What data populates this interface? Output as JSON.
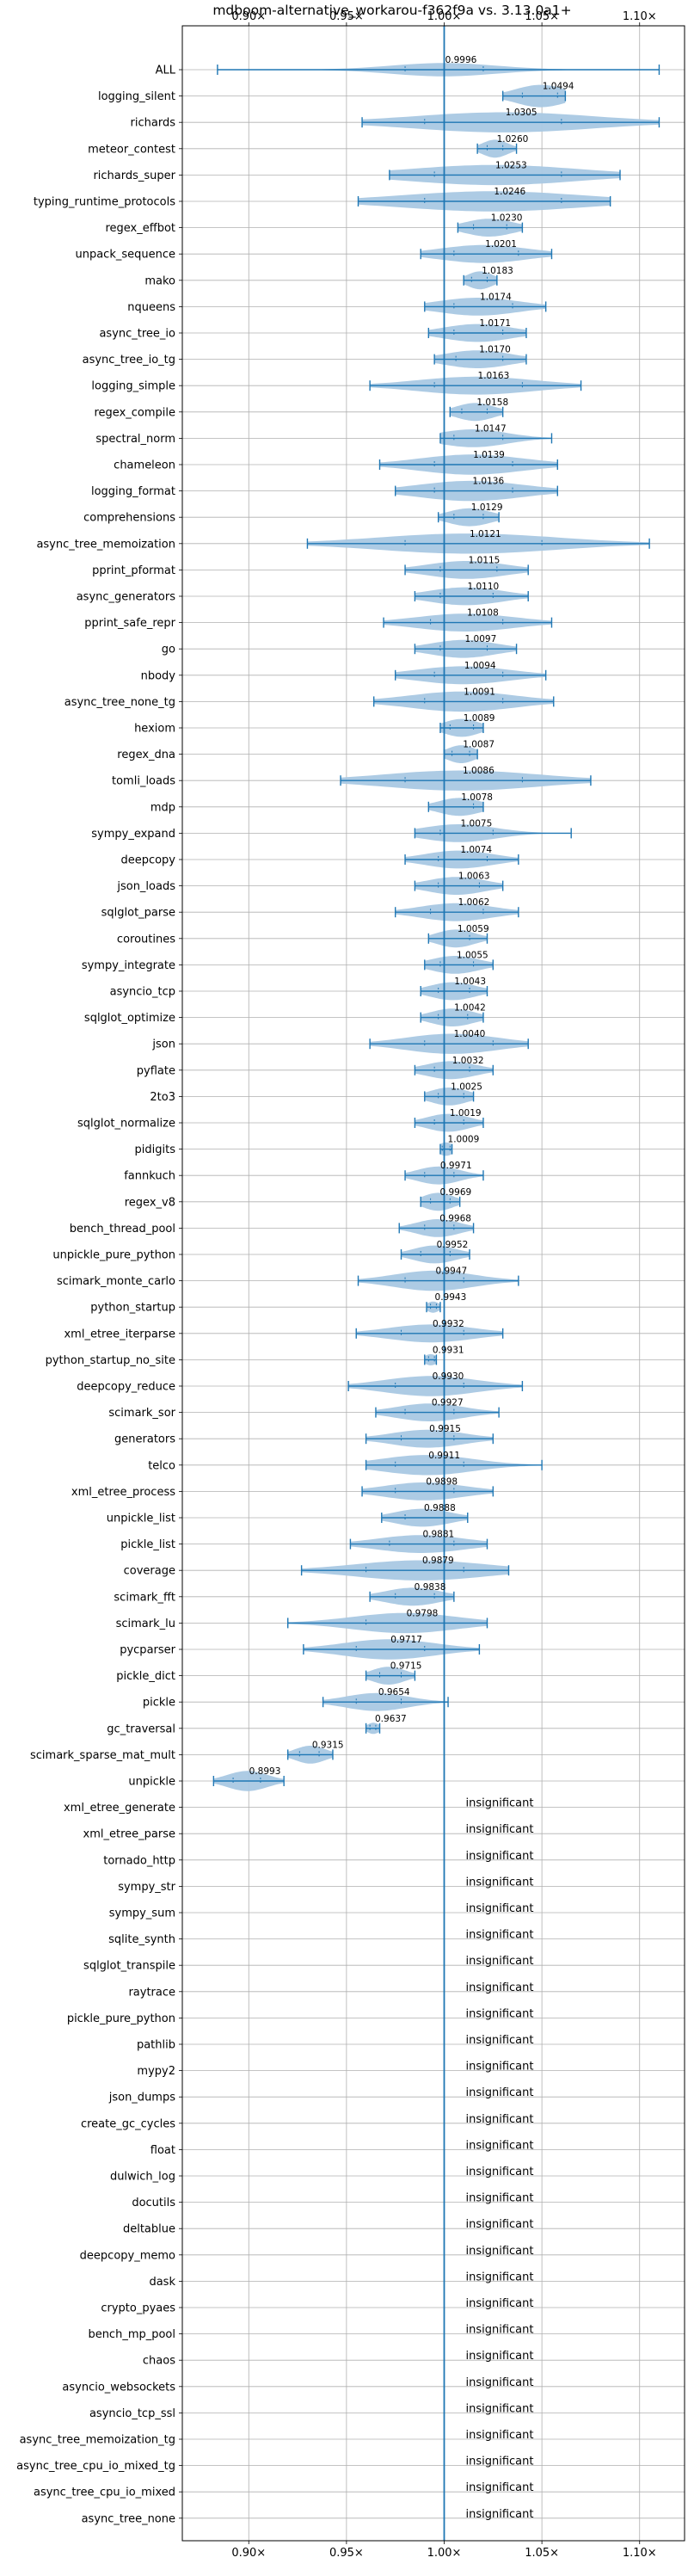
{
  "chart_data": {
    "type": "violin",
    "title": "mdboom-alternative_workarou-f362f9a vs. 3.13.0a1+",
    "x_tick_labels": [
      "0.90×",
      "0.95×",
      "1.00×",
      "1.05×",
      "1.10×"
    ],
    "x_ticks": [
      0.9,
      0.95,
      1.0,
      1.05,
      1.1
    ],
    "xlim": [
      0.866,
      1.123
    ],
    "reference_line": 1.0,
    "grid": true,
    "insignificant_label": "insignificant",
    "benchmarks": [
      {
        "name": "ALL",
        "median": 0.9996,
        "label": "0.9996",
        "min": 0.884,
        "max": 1.11,
        "q1": 0.98,
        "q3": 1.02,
        "width": 0.6
      },
      {
        "name": "logging_silent",
        "median": 1.0494,
        "label": "1.0494",
        "min": 1.03,
        "max": 1.062,
        "q1": 1.04,
        "q3": 1.058,
        "width": 1.0
      },
      {
        "name": "richards",
        "median": 1.0305,
        "label": "1.0305",
        "min": 0.958,
        "max": 1.11,
        "q1": 0.99,
        "q3": 1.06,
        "width": 0.9
      },
      {
        "name": "meteor_contest",
        "median": 1.026,
        "label": "1.0260",
        "min": 1.017,
        "max": 1.037,
        "q1": 1.022,
        "q3": 1.03,
        "width": 0.8
      },
      {
        "name": "richards_super",
        "median": 1.0253,
        "label": "1.0253",
        "min": 0.972,
        "max": 1.09,
        "q1": 0.995,
        "q3": 1.06,
        "width": 0.9
      },
      {
        "name": "typing_runtime_protocols",
        "median": 1.0246,
        "label": "1.0246",
        "min": 0.956,
        "max": 1.085,
        "q1": 0.99,
        "q3": 1.06,
        "width": 0.9
      },
      {
        "name": "regex_effbot",
        "median": 1.023,
        "label": "1.0230",
        "min": 1.007,
        "max": 1.04,
        "q1": 1.015,
        "q3": 1.032,
        "width": 0.8
      },
      {
        "name": "unpack_sequence",
        "median": 1.0201,
        "label": "1.0201",
        "min": 0.988,
        "max": 1.055,
        "q1": 1.005,
        "q3": 1.038,
        "width": 0.8
      },
      {
        "name": "mako",
        "median": 1.0183,
        "label": "1.0183",
        "min": 1.01,
        "max": 1.027,
        "q1": 1.014,
        "q3": 1.022,
        "width": 0.8
      },
      {
        "name": "nqueens",
        "median": 1.0174,
        "label": "1.0174",
        "min": 0.99,
        "max": 1.052,
        "q1": 1.005,
        "q3": 1.035,
        "width": 0.8
      },
      {
        "name": "async_tree_io",
        "median": 1.0171,
        "label": "1.0171",
        "min": 0.992,
        "max": 1.042,
        "q1": 1.005,
        "q3": 1.03,
        "width": 0.8
      },
      {
        "name": "async_tree_io_tg",
        "median": 1.017,
        "label": "1.0170",
        "min": 0.995,
        "max": 1.042,
        "q1": 1.006,
        "q3": 1.03,
        "width": 0.8
      },
      {
        "name": "logging_simple",
        "median": 1.0163,
        "label": "1.0163",
        "min": 0.962,
        "max": 1.07,
        "q1": 0.995,
        "q3": 1.04,
        "width": 0.8
      },
      {
        "name": "regex_compile",
        "median": 1.0158,
        "label": "1.0158",
        "min": 1.003,
        "max": 1.03,
        "q1": 1.009,
        "q3": 1.022,
        "width": 0.8
      },
      {
        "name": "spectral_norm",
        "median": 1.0147,
        "label": "1.0147",
        "min": 0.998,
        "max": 1.055,
        "q1": 1.005,
        "q3": 1.03,
        "width": 0.8
      },
      {
        "name": "chameleon",
        "median": 1.0139,
        "label": "1.0139",
        "min": 0.967,
        "max": 1.058,
        "q1": 0.995,
        "q3": 1.035,
        "width": 0.9
      },
      {
        "name": "logging_format",
        "median": 1.0136,
        "label": "1.0136",
        "min": 0.975,
        "max": 1.058,
        "q1": 0.995,
        "q3": 1.035,
        "width": 0.9
      },
      {
        "name": "comprehensions",
        "median": 1.0129,
        "label": "1.0129",
        "min": 0.997,
        "max": 1.028,
        "q1": 1.005,
        "q3": 1.02,
        "width": 0.8
      },
      {
        "name": "async_tree_memoization",
        "median": 1.0121,
        "label": "1.0121",
        "min": 0.93,
        "max": 1.105,
        "q1": 0.98,
        "q3": 1.05,
        "width": 0.9
      },
      {
        "name": "pprint_pformat",
        "median": 1.0115,
        "label": "1.0115",
        "min": 0.98,
        "max": 1.043,
        "q1": 0.998,
        "q3": 1.027,
        "width": 0.8
      },
      {
        "name": "async_generators",
        "median": 1.011,
        "label": "1.0110",
        "min": 0.985,
        "max": 1.043,
        "q1": 0.998,
        "q3": 1.025,
        "width": 0.8
      },
      {
        "name": "pprint_safe_repr",
        "median": 1.0108,
        "label": "1.0108",
        "min": 0.969,
        "max": 1.055,
        "q1": 0.993,
        "q3": 1.03,
        "width": 0.8
      },
      {
        "name": "go",
        "median": 1.0097,
        "label": "1.0097",
        "min": 0.985,
        "max": 1.037,
        "q1": 0.998,
        "q3": 1.022,
        "width": 0.8
      },
      {
        "name": "nbody",
        "median": 1.0094,
        "label": "1.0094",
        "min": 0.975,
        "max": 1.052,
        "q1": 0.995,
        "q3": 1.03,
        "width": 0.8
      },
      {
        "name": "async_tree_none_tg",
        "median": 1.0091,
        "label": "1.0091",
        "min": 0.964,
        "max": 1.056,
        "q1": 0.99,
        "q3": 1.03,
        "width": 0.9
      },
      {
        "name": "hexiom",
        "median": 1.0089,
        "label": "1.0089",
        "min": 0.998,
        "max": 1.02,
        "q1": 1.003,
        "q3": 1.015,
        "width": 0.8
      },
      {
        "name": "regex_dna",
        "median": 1.0087,
        "label": "1.0087",
        "min": 1.0,
        "max": 1.017,
        "q1": 1.004,
        "q3": 1.013,
        "width": 0.8
      },
      {
        "name": "tomli_loads",
        "median": 1.0086,
        "label": "1.0086",
        "min": 0.947,
        "max": 1.075,
        "q1": 0.98,
        "q3": 1.04,
        "width": 0.9
      },
      {
        "name": "mdp",
        "median": 1.0078,
        "label": "1.0078",
        "min": 0.992,
        "max": 1.02,
        "q1": 1.0,
        "q3": 1.015,
        "width": 0.8
      },
      {
        "name": "sympy_expand",
        "median": 1.0075,
        "label": "1.0075",
        "min": 0.985,
        "max": 1.065,
        "q1": 0.998,
        "q3": 1.025,
        "width": 0.8
      },
      {
        "name": "deepcopy",
        "median": 1.0074,
        "label": "1.0074",
        "min": 0.98,
        "max": 1.038,
        "q1": 0.997,
        "q3": 1.022,
        "width": 0.8
      },
      {
        "name": "json_loads",
        "median": 1.0063,
        "label": "1.0063",
        "min": 0.985,
        "max": 1.03,
        "q1": 0.997,
        "q3": 1.018,
        "width": 0.8
      },
      {
        "name": "sqlglot_parse",
        "median": 1.0062,
        "label": "1.0062",
        "min": 0.975,
        "max": 1.038,
        "q1": 0.993,
        "q3": 1.02,
        "width": 0.8
      },
      {
        "name": "coroutines",
        "median": 1.0059,
        "label": "1.0059",
        "min": 0.992,
        "max": 1.022,
        "q1": 1.0,
        "q3": 1.013,
        "width": 0.8
      },
      {
        "name": "sympy_integrate",
        "median": 1.0055,
        "label": "1.0055",
        "min": 0.99,
        "max": 1.025,
        "q1": 0.998,
        "q3": 1.015,
        "width": 0.8
      },
      {
        "name": "asyncio_tcp",
        "median": 1.0043,
        "label": "1.0043",
        "min": 0.988,
        "max": 1.022,
        "q1": 0.997,
        "q3": 1.013,
        "width": 0.8
      },
      {
        "name": "sqlglot_optimize",
        "median": 1.0042,
        "label": "1.0042",
        "min": 0.988,
        "max": 1.02,
        "q1": 0.997,
        "q3": 1.012,
        "width": 0.8
      },
      {
        "name": "json",
        "median": 1.004,
        "label": "1.0040",
        "min": 0.962,
        "max": 1.043,
        "q1": 0.99,
        "q3": 1.025,
        "width": 0.9
      },
      {
        "name": "pyflate",
        "median": 1.0032,
        "label": "1.0032",
        "min": 0.985,
        "max": 1.025,
        "q1": 0.995,
        "q3": 1.013,
        "width": 0.8
      },
      {
        "name": "2to3",
        "median": 1.0025,
        "label": "1.0025",
        "min": 0.99,
        "max": 1.015,
        "q1": 0.997,
        "q3": 1.01,
        "width": 0.8
      },
      {
        "name": "sqlglot_normalize",
        "median": 1.0019,
        "label": "1.0019",
        "min": 0.985,
        "max": 1.02,
        "q1": 0.995,
        "q3": 1.01,
        "width": 0.8
      },
      {
        "name": "pidigits",
        "median": 1.0009,
        "label": "1.0009",
        "min": 0.998,
        "max": 1.004,
        "q1": 0.999,
        "q3": 1.003,
        "width": 0.6
      },
      {
        "name": "fannkuch",
        "median": 0.9971,
        "label": "0.9971",
        "min": 0.98,
        "max": 1.02,
        "q1": 0.99,
        "q3": 1.005,
        "width": 0.8
      },
      {
        "name": "regex_v8",
        "median": 0.9969,
        "label": "0.9969",
        "min": 0.988,
        "max": 1.008,
        "q1": 0.993,
        "q3": 1.003,
        "width": 0.8
      },
      {
        "name": "bench_thread_pool",
        "median": 0.9968,
        "label": "0.9968",
        "min": 0.977,
        "max": 1.015,
        "q1": 0.99,
        "q3": 1.005,
        "width": 0.8
      },
      {
        "name": "unpickle_pure_python",
        "median": 0.9952,
        "label": "0.9952",
        "min": 0.978,
        "max": 1.013,
        "q1": 0.988,
        "q3": 1.003,
        "width": 0.8
      },
      {
        "name": "scimark_monte_carlo",
        "median": 0.9947,
        "label": "0.9947",
        "min": 0.956,
        "max": 1.038,
        "q1": 0.98,
        "q3": 1.01,
        "width": 0.9
      },
      {
        "name": "python_startup",
        "median": 0.9943,
        "label": "0.9943",
        "min": 0.991,
        "max": 0.998,
        "q1": 0.993,
        "q3": 0.996,
        "width": 0.5
      },
      {
        "name": "xml_etree_iterparse",
        "median": 0.9932,
        "label": "0.9932",
        "min": 0.955,
        "max": 1.03,
        "q1": 0.978,
        "q3": 1.01,
        "width": 0.8
      },
      {
        "name": "python_startup_no_site",
        "median": 0.9931,
        "label": "0.9931",
        "min": 0.99,
        "max": 0.996,
        "q1": 0.992,
        "q3": 0.995,
        "width": 0.5
      },
      {
        "name": "deepcopy_reduce",
        "median": 0.993,
        "label": "0.9930",
        "min": 0.951,
        "max": 1.04,
        "q1": 0.975,
        "q3": 1.01,
        "width": 0.9
      },
      {
        "name": "scimark_sor",
        "median": 0.9927,
        "label": "0.9927",
        "min": 0.965,
        "max": 1.028,
        "q1": 0.98,
        "q3": 1.005,
        "width": 0.8
      },
      {
        "name": "generators",
        "median": 0.9915,
        "label": "0.9915",
        "min": 0.96,
        "max": 1.025,
        "q1": 0.978,
        "q3": 1.005,
        "width": 0.8
      },
      {
        "name": "telco",
        "median": 0.9911,
        "label": "0.9911",
        "min": 0.96,
        "max": 1.05,
        "q1": 0.975,
        "q3": 1.01,
        "width": 0.9
      },
      {
        "name": "xml_etree_process",
        "median": 0.9898,
        "label": "0.9898",
        "min": 0.958,
        "max": 1.025,
        "q1": 0.975,
        "q3": 1.005,
        "width": 0.8
      },
      {
        "name": "unpickle_list",
        "median": 0.9888,
        "label": "0.9888",
        "min": 0.968,
        "max": 1.012,
        "q1": 0.98,
        "q3": 1.0,
        "width": 0.8
      },
      {
        "name": "pickle_list",
        "median": 0.9881,
        "label": "0.9881",
        "min": 0.952,
        "max": 1.022,
        "q1": 0.972,
        "q3": 1.005,
        "width": 0.8
      },
      {
        "name": "coverage",
        "median": 0.9879,
        "label": "0.9879",
        "min": 0.927,
        "max": 1.033,
        "q1": 0.96,
        "q3": 1.01,
        "width": 0.9
      },
      {
        "name": "scimark_fft",
        "median": 0.9838,
        "label": "0.9838",
        "min": 0.962,
        "max": 1.005,
        "q1": 0.975,
        "q3": 0.995,
        "width": 0.8
      },
      {
        "name": "scimark_lu",
        "median": 0.9798,
        "label": "0.9798",
        "min": 0.92,
        "max": 1.022,
        "q1": 0.96,
        "q3": 1.0,
        "width": 0.9
      },
      {
        "name": "pycparser",
        "median": 0.9717,
        "label": "0.9717",
        "min": 0.928,
        "max": 1.018,
        "q1": 0.955,
        "q3": 0.99,
        "width": 0.9
      },
      {
        "name": "pickle_dict",
        "median": 0.9715,
        "label": "0.9715",
        "min": 0.96,
        "max": 0.985,
        "q1": 0.967,
        "q3": 0.978,
        "width": 0.8
      },
      {
        "name": "pickle",
        "median": 0.9654,
        "label": "0.9654",
        "min": 0.938,
        "max": 1.002,
        "q1": 0.955,
        "q3": 0.978,
        "width": 0.8
      },
      {
        "name": "gc_traversal",
        "median": 0.9637,
        "label": "0.9637",
        "min": 0.96,
        "max": 0.967,
        "q1": 0.962,
        "q3": 0.965,
        "width": 0.5
      },
      {
        "name": "scimark_sparse_mat_mult",
        "median": 0.9315,
        "label": "0.9315",
        "min": 0.92,
        "max": 0.943,
        "q1": 0.926,
        "q3": 0.936,
        "width": 0.8
      },
      {
        "name": "unpickle",
        "median": 0.8993,
        "label": "0.8993",
        "min": 0.882,
        "max": 0.918,
        "q1": 0.892,
        "q3": 0.906,
        "width": 0.9
      },
      {
        "name": "xml_etree_generate",
        "insignificant": true
      },
      {
        "name": "xml_etree_parse",
        "insignificant": true
      },
      {
        "name": "tornado_http",
        "insignificant": true
      },
      {
        "name": "sympy_str",
        "insignificant": true
      },
      {
        "name": "sympy_sum",
        "insignificant": true
      },
      {
        "name": "sqlite_synth",
        "insignificant": true
      },
      {
        "name": "sqlglot_transpile",
        "insignificant": true
      },
      {
        "name": "raytrace",
        "insignificant": true
      },
      {
        "name": "pickle_pure_python",
        "insignificant": true
      },
      {
        "name": "pathlib",
        "insignificant": true
      },
      {
        "name": "mypy2",
        "insignificant": true
      },
      {
        "name": "json_dumps",
        "insignificant": true
      },
      {
        "name": "create_gc_cycles",
        "insignificant": true
      },
      {
        "name": "float",
        "insignificant": true
      },
      {
        "name": "dulwich_log",
        "insignificant": true
      },
      {
        "name": "docutils",
        "insignificant": true
      },
      {
        "name": "deltablue",
        "insignificant": true
      },
      {
        "name": "deepcopy_memo",
        "insignificant": true
      },
      {
        "name": "dask",
        "insignificant": true
      },
      {
        "name": "crypto_pyaes",
        "insignificant": true
      },
      {
        "name": "bench_mp_pool",
        "insignificant": true
      },
      {
        "name": "chaos",
        "insignificant": true
      },
      {
        "name": "asyncio_websockets",
        "insignificant": true
      },
      {
        "name": "asyncio_tcp_ssl",
        "insignificant": true
      },
      {
        "name": "async_tree_memoization_tg",
        "insignificant": true
      },
      {
        "name": "async_tree_cpu_io_mixed_tg",
        "insignificant": true
      },
      {
        "name": "async_tree_cpu_io_mixed",
        "insignificant": true
      },
      {
        "name": "async_tree_none",
        "insignificant": true
      }
    ],
    "colors": {
      "line": "#1f77b4",
      "violin_fill": "#a9c8e3",
      "grid": "#b0b0b0",
      "axis": "#000000",
      "text": "#000000"
    }
  }
}
